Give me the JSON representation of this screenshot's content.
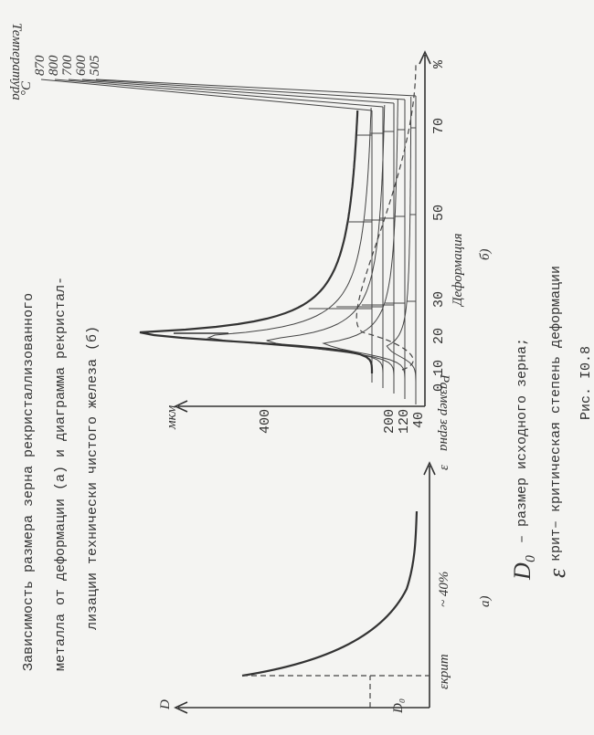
{
  "title": {
    "lines": [
      "Зависимость размера зерна    рекристаллизованного",
      "металла от деформации (а) и диаграмма рекристал-",
      "лизации технически чистого железа (б)"
    ]
  },
  "figure_a": {
    "y_axis": "D",
    "x_axis": "ε",
    "d0": "D₀",
    "critical": "εкрит",
    "approx": "~ 40%",
    "label": "а)"
  },
  "figure_b": {
    "y_unit": "мкм",
    "y_title": "Размер зерна",
    "y_ticks": [
      "400",
      "200",
      "120",
      "40"
    ],
    "x_ticks": [
      "0",
      "10",
      "20",
      "30",
      "50",
      "70",
      "%"
    ],
    "x_title": "Деформация",
    "label": "б)",
    "temperatures": [
      "870",
      "800",
      "700",
      "600",
      "505"
    ],
    "temp_unit": "°C",
    "temp_title": "Температура"
  },
  "legend": {
    "d0_symbol": "D₀",
    "d0_text": "– размер исходного зерна;",
    "eps_symbol": "ε",
    "eps_text": "крит– критическая степень деформации"
  },
  "caption": "Рис. I0.8"
}
